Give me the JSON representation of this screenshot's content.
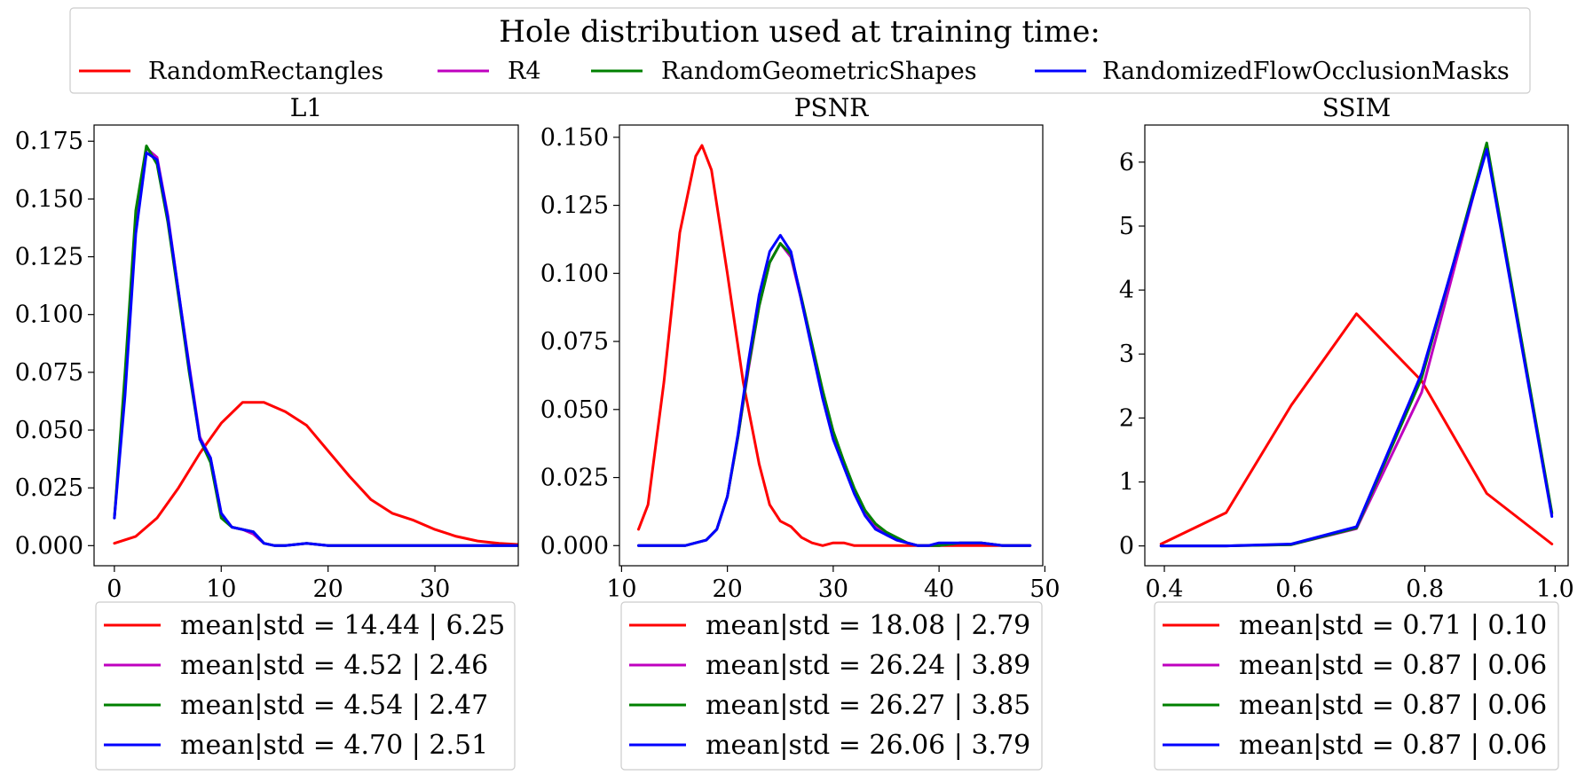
{
  "figure_legend": {
    "title": "Hole distribution used at training time:",
    "entries": [
      {
        "label": "RandomRectangles",
        "color": "#ff0000"
      },
      {
        "label": "R4",
        "color": "#bf00bf"
      },
      {
        "label": "RandomGeometricShapes",
        "color": "#008000"
      },
      {
        "label": "RandomizedFlowOcclusionMasks",
        "color": "#0000ff"
      }
    ]
  },
  "chart_data": [
    {
      "type": "line",
      "title": "L1",
      "xlabel": "",
      "ylabel": "",
      "xlim": [
        -1.9,
        37.8
      ],
      "ylim": [
        -0.0087,
        0.182
      ],
      "xticks": [
        0,
        10,
        20,
        30
      ],
      "xtick_labels": [
        "0",
        "10",
        "20",
        "30"
      ],
      "yticks": [
        0,
        0.025,
        0.05,
        0.075,
        0.1,
        0.125,
        0.15,
        0.175
      ],
      "ytick_labels": [
        "0.000",
        "0.025",
        "0.050",
        "0.075",
        "0.100",
        "0.125",
        "0.150",
        "0.175"
      ],
      "series": [
        {
          "name": "RandomRectangles",
          "color": "#ff0000",
          "x": [
            0,
            2,
            4,
            6,
            8,
            10,
            12,
            14,
            16,
            18,
            20,
            22,
            24,
            26,
            28,
            30,
            32,
            34,
            36,
            37.8
          ],
          "y": [
            0.001,
            0.004,
            0.012,
            0.025,
            0.04,
            0.053,
            0.062,
            0.062,
            0.058,
            0.052,
            0.041,
            0.03,
            0.02,
            0.014,
            0.011,
            0.007,
            0.004,
            0.002,
            0.001,
            0.0005
          ]
        },
        {
          "name": "R4",
          "color": "#bf00bf",
          "x": [
            0,
            1,
            2,
            3,
            4,
            5,
            6,
            7,
            8,
            9,
            10,
            11,
            12,
            13,
            14,
            15,
            16,
            18,
            20,
            25,
            30,
            37.8
          ],
          "y": [
            0.012,
            0.07,
            0.14,
            0.172,
            0.168,
            0.143,
            0.11,
            0.078,
            0.047,
            0.038,
            0.014,
            0.008,
            0.007,
            0.005,
            0.001,
            0,
            0,
            0.001,
            0,
            0,
            0,
            0
          ]
        },
        {
          "name": "RandomGeometricShapes",
          "color": "#008000",
          "x": [
            0,
            1,
            2,
            3,
            4,
            5,
            6,
            7,
            8,
            9,
            10,
            11,
            12,
            13,
            14,
            15,
            16,
            18,
            20,
            25,
            30,
            37.8
          ],
          "y": [
            0.012,
            0.075,
            0.145,
            0.173,
            0.165,
            0.14,
            0.108,
            0.075,
            0.046,
            0.036,
            0.012,
            0.008,
            0.007,
            0.006,
            0.001,
            0,
            0,
            0.001,
            0,
            0,
            0,
            0
          ]
        },
        {
          "name": "RandomizedFlowOcclusionMasks",
          "color": "#0000ff",
          "x": [
            0,
            1,
            2,
            3,
            4,
            5,
            6,
            7,
            8,
            9,
            10,
            11,
            12,
            13,
            14,
            15,
            16,
            18,
            20,
            25,
            30,
            37.8
          ],
          "y": [
            0.012,
            0.065,
            0.135,
            0.17,
            0.167,
            0.142,
            0.11,
            0.077,
            0.046,
            0.038,
            0.014,
            0.008,
            0.007,
            0.006,
            0.001,
            0,
            0,
            0.001,
            0,
            0,
            0,
            0
          ]
        }
      ],
      "legend": [
        "mean|std = 14.44 | 6.25",
        "mean|std = 4.52 | 2.46",
        "mean|std = 4.54 | 2.47",
        "mean|std = 4.70 | 2.51"
      ]
    },
    {
      "type": "line",
      "title": "PSNR",
      "xlabel": "",
      "ylabel": "",
      "xlim": [
        9.8,
        49.8
      ],
      "ylim": [
        -0.0074,
        0.1545
      ],
      "xticks": [
        10,
        20,
        30,
        40,
        50
      ],
      "xtick_labels": [
        "10",
        "20",
        "30",
        "40",
        "50"
      ],
      "yticks": [
        0,
        0.025,
        0.05,
        0.075,
        0.1,
        0.125,
        0.15
      ],
      "ytick_labels": [
        "0.000",
        "0.025",
        "0.050",
        "0.075",
        "0.100",
        "0.125",
        "0.150"
      ],
      "series": [
        {
          "name": "RandomRectangles",
          "color": "#ff0000",
          "x": [
            11.6,
            12.5,
            14,
            15.5,
            17,
            17.6,
            18.5,
            20,
            21.5,
            23,
            24,
            25,
            26,
            27,
            28,
            29,
            30,
            31,
            32,
            35,
            40,
            48.6
          ],
          "y": [
            0.006,
            0.015,
            0.06,
            0.115,
            0.143,
            0.147,
            0.138,
            0.1,
            0.06,
            0.03,
            0.015,
            0.009,
            0.007,
            0.003,
            0.001,
            0,
            0.001,
            0.001,
            0,
            0,
            0,
            0
          ]
        },
        {
          "name": "R4",
          "color": "#bf00bf",
          "x": [
            11.6,
            16,
            18,
            19,
            20,
            21,
            22,
            23,
            24,
            25,
            26,
            27,
            28,
            29,
            30,
            31,
            32,
            33,
            34,
            35,
            36,
            37,
            38,
            39,
            40,
            42,
            44,
            46,
            48.6
          ],
          "y": [
            0,
            0,
            0.002,
            0.006,
            0.018,
            0.04,
            0.065,
            0.088,
            0.104,
            0.111,
            0.106,
            0.09,
            0.073,
            0.055,
            0.04,
            0.03,
            0.02,
            0.012,
            0.007,
            0.004,
            0.002,
            0.001,
            0.0,
            0.0,
            0.0,
            0.001,
            0.001,
            0,
            0
          ]
        },
        {
          "name": "RandomGeometricShapes",
          "color": "#008000",
          "x": [
            11.6,
            16,
            18,
            19,
            20,
            21,
            22,
            23,
            24,
            25,
            26,
            27,
            28,
            29,
            30,
            31,
            32,
            33,
            34,
            35,
            36,
            37,
            38,
            39,
            40,
            42,
            44,
            46,
            48.6
          ],
          "y": [
            0,
            0,
            0.002,
            0.006,
            0.018,
            0.04,
            0.066,
            0.088,
            0.104,
            0.111,
            0.107,
            0.091,
            0.074,
            0.057,
            0.042,
            0.031,
            0.021,
            0.013,
            0.008,
            0.005,
            0.003,
            0.001,
            0.0,
            0.0,
            0.0,
            0.001,
            0.001,
            0,
            0
          ]
        },
        {
          "name": "RandomizedFlowOcclusionMasks",
          "color": "#0000ff",
          "x": [
            11.6,
            16,
            18,
            19,
            20,
            21,
            22,
            23,
            24,
            25,
            26,
            27,
            28,
            29,
            30,
            31,
            32,
            33,
            34,
            35,
            36,
            37,
            38,
            39,
            40,
            42,
            44,
            46,
            48.6
          ],
          "y": [
            0,
            0,
            0.002,
            0.006,
            0.018,
            0.041,
            0.068,
            0.092,
            0.108,
            0.114,
            0.108,
            0.09,
            0.072,
            0.054,
            0.039,
            0.029,
            0.019,
            0.011,
            0.006,
            0.004,
            0.002,
            0.001,
            0.0,
            0.0,
            0.001,
            0.001,
            0.001,
            0,
            0
          ]
        }
      ],
      "legend": [
        "mean|std = 18.08 | 2.79",
        "mean|std = 26.24 | 3.89",
        "mean|std = 26.27 | 3.85",
        "mean|std = 26.06 | 3.79"
      ]
    },
    {
      "type": "line",
      "title": "SSIM",
      "xlabel": "",
      "ylabel": "",
      "xlim": [
        0.37,
        1.02
      ],
      "ylim": [
        -0.31,
        6.58
      ],
      "xticks": [
        0.4,
        0.6,
        0.8,
        1.0
      ],
      "xtick_labels": [
        "0.4",
        "0.6",
        "0.8",
        "1.0"
      ],
      "yticks": [
        0,
        1,
        2,
        3,
        4,
        5,
        6
      ],
      "ytick_labels": [
        "0",
        "1",
        "2",
        "3",
        "4",
        "5",
        "6"
      ],
      "series": [
        {
          "name": "RandomRectangles",
          "color": "#ff0000",
          "x": [
            0.395,
            0.495,
            0.595,
            0.695,
            0.795,
            0.895,
            0.995
          ],
          "y": [
            0.03,
            0.52,
            2.2,
            3.63,
            2.58,
            0.82,
            0.03
          ]
        },
        {
          "name": "R4",
          "color": "#bf00bf",
          "x": [
            0.395,
            0.495,
            0.595,
            0.695,
            0.795,
            0.895,
            0.995
          ],
          "y": [
            0,
            0,
            0.02,
            0.27,
            2.4,
            6.27,
            0.5
          ]
        },
        {
          "name": "RandomGeometricShapes",
          "color": "#008000",
          "x": [
            0.395,
            0.495,
            0.595,
            0.695,
            0.795,
            0.895,
            0.995
          ],
          "y": [
            0,
            0,
            0.02,
            0.28,
            2.62,
            6.3,
            0.52
          ]
        },
        {
          "name": "RandomizedFlowOcclusionMasks",
          "color": "#0000ff",
          "x": [
            0.395,
            0.495,
            0.595,
            0.695,
            0.795,
            0.895,
            0.995
          ],
          "y": [
            0,
            0,
            0.03,
            0.3,
            2.7,
            6.2,
            0.46
          ]
        }
      ],
      "legend": [
        "mean|std = 0.71 | 0.10",
        "mean|std = 0.87 | 0.06",
        "mean|std = 0.87 | 0.06",
        "mean|std = 0.87 | 0.06"
      ]
    }
  ]
}
